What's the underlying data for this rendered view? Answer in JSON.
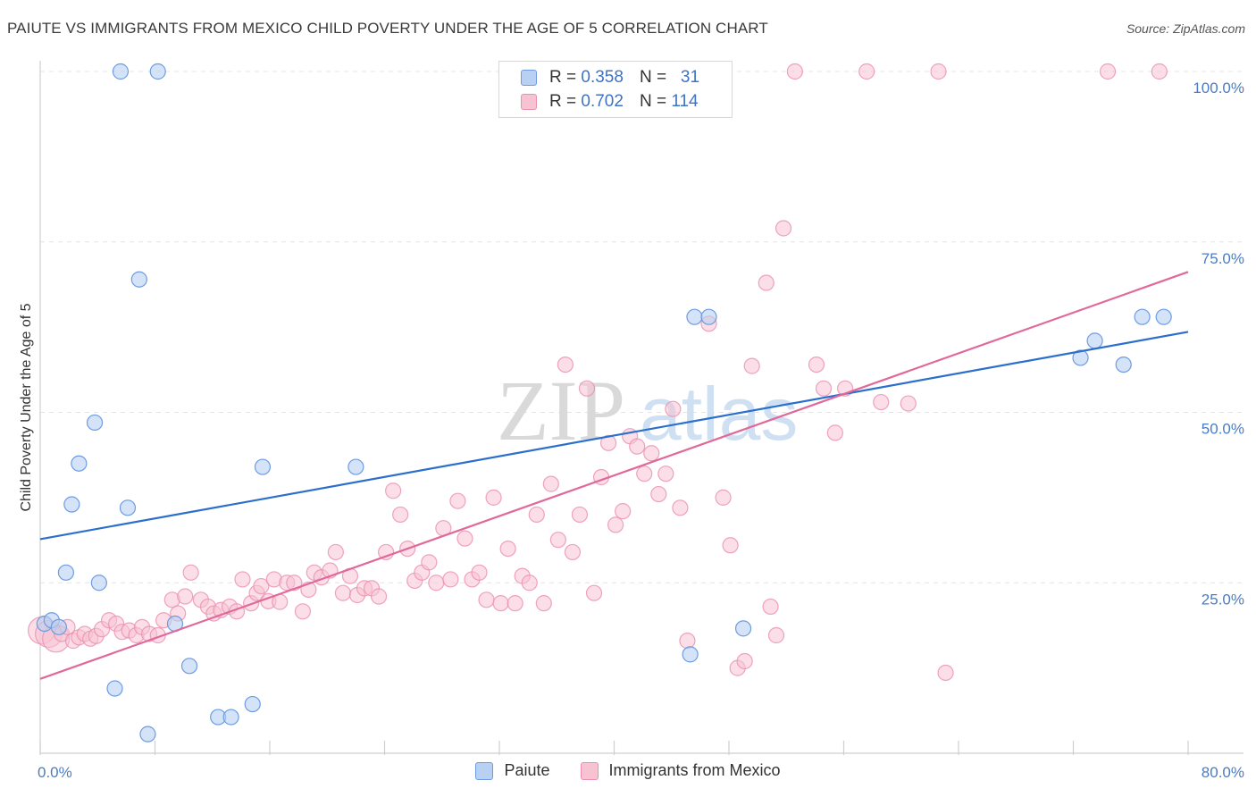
{
  "title": "PAIUTE VS IMMIGRANTS FROM MEXICO CHILD POVERTY UNDER THE AGE OF 5 CORRELATION CHART",
  "source": "Source: ZipAtlas.com",
  "watermark": {
    "zip": "ZIP",
    "atlas": "atlas"
  },
  "colors": {
    "paiute_fill": "#b8d0f2",
    "paiute_stroke": "#6f9ce0",
    "paiute_line": "#2b6fcc",
    "mexico_fill": "#f7c3d3",
    "mexico_stroke": "#ea8fae",
    "mexico_line": "#e0699a",
    "grid": "#e4e4e4",
    "tick_text": "#4a7cc4"
  },
  "legend": {
    "rows": [
      {
        "r_label": "R = ",
        "r_value": "0.358",
        "n_label": "N = ",
        "n_value": "31"
      },
      {
        "r_label": "R = ",
        "r_value": "0.702",
        "n_label": "N = ",
        "n_value": "114"
      }
    ]
  },
  "chart_data": {
    "type": "scatter",
    "title": "PAIUTE VS IMMIGRANTS FROM MEXICO CHILD POVERTY UNDER THE AGE OF 5 CORRELATION CHART",
    "xlabel": "",
    "ylabel": "Child Poverty Under the Age of 5",
    "xlim": [
      0,
      80
    ],
    "ylim": [
      0,
      100
    ],
    "x_tick_labels": [
      "0.0%",
      "80.0%"
    ],
    "y_ticks": [
      25,
      50,
      75,
      100
    ],
    "y_tick_labels": [
      "25.0%",
      "50.0%",
      "75.0%",
      "100.0%"
    ],
    "grid": true,
    "legend_position": "top-center",
    "series": [
      {
        "name": "Paiute",
        "trend": {
          "x": [
            0,
            80
          ],
          "y": [
            31.4,
            61.8
          ]
        },
        "points": [
          [
            0.3,
            19
          ],
          [
            0.8,
            19.5
          ],
          [
            1.3,
            18.5
          ],
          [
            1.8,
            26.5
          ],
          [
            2.2,
            36.5
          ],
          [
            2.7,
            42.5
          ],
          [
            3.8,
            48.5
          ],
          [
            4.1,
            25
          ],
          [
            5.2,
            9.5
          ],
          [
            5.6,
            100
          ],
          [
            6.1,
            36
          ],
          [
            6.9,
            69.5
          ],
          [
            7.5,
            2.8
          ],
          [
            8.2,
            100
          ],
          [
            9.4,
            19
          ],
          [
            10.4,
            12.8
          ],
          [
            12.4,
            5.3
          ],
          [
            13.3,
            5.3
          ],
          [
            14.8,
            7.2
          ],
          [
            15.5,
            42
          ],
          [
            22,
            42
          ],
          [
            34.7,
            100
          ],
          [
            45.3,
            14.5
          ],
          [
            45.6,
            64
          ],
          [
            46.6,
            64
          ],
          [
            49,
            18.3
          ],
          [
            72.5,
            58
          ],
          [
            73.5,
            60.5
          ],
          [
            75.5,
            57
          ],
          [
            76.8,
            64
          ],
          [
            78.3,
            64
          ]
        ]
      },
      {
        "name": "Immigrants from Mexico",
        "trend": {
          "x": [
            0,
            80
          ],
          "y": [
            10.9,
            70.6
          ]
        },
        "points": [
          [
            0.1,
            18
          ],
          [
            0.6,
            17.5
          ],
          [
            1.1,
            16.8
          ],
          [
            1.5,
            17.5
          ],
          [
            1.9,
            18.5
          ],
          [
            2.3,
            16.5
          ],
          [
            2.7,
            17
          ],
          [
            3.1,
            17.5
          ],
          [
            3.5,
            16.8
          ],
          [
            3.9,
            17.2
          ],
          [
            4.3,
            18.2
          ],
          [
            4.8,
            19.5
          ],
          [
            5.3,
            19
          ],
          [
            5.7,
            17.8
          ],
          [
            6.2,
            18
          ],
          [
            6.7,
            17.3
          ],
          [
            7.1,
            18.5
          ],
          [
            7.6,
            17.5
          ],
          [
            8.2,
            17.3
          ],
          [
            8.6,
            19.5
          ],
          [
            9.2,
            22.5
          ],
          [
            9.6,
            20.5
          ],
          [
            10.1,
            23
          ],
          [
            10.5,
            26.5
          ],
          [
            11.2,
            22.5
          ],
          [
            11.7,
            21.5
          ],
          [
            12.1,
            20.5
          ],
          [
            12.6,
            21
          ],
          [
            13.2,
            21.5
          ],
          [
            13.7,
            20.8
          ],
          [
            14.1,
            25.5
          ],
          [
            14.7,
            22
          ],
          [
            15.1,
            23.5
          ],
          [
            15.4,
            24.5
          ],
          [
            15.9,
            22.3
          ],
          [
            16.3,
            25.5
          ],
          [
            16.7,
            22.2
          ],
          [
            17.2,
            25
          ],
          [
            17.7,
            25
          ],
          [
            18.3,
            20.8
          ],
          [
            18.7,
            24
          ],
          [
            19.1,
            26.5
          ],
          [
            19.6,
            25.8
          ],
          [
            20.2,
            26.8
          ],
          [
            20.6,
            29.5
          ],
          [
            21.1,
            23.5
          ],
          [
            21.6,
            26
          ],
          [
            22.1,
            23.2
          ],
          [
            22.6,
            24.2
          ],
          [
            23.1,
            24.2
          ],
          [
            23.6,
            23
          ],
          [
            24.1,
            29.5
          ],
          [
            24.6,
            38.5
          ],
          [
            25.1,
            35
          ],
          [
            25.6,
            30
          ],
          [
            26.1,
            25.3
          ],
          [
            26.6,
            26.5
          ],
          [
            27.1,
            28
          ],
          [
            27.6,
            25
          ],
          [
            28.1,
            33
          ],
          [
            28.6,
            25.5
          ],
          [
            29.1,
            37
          ],
          [
            29.6,
            31.5
          ],
          [
            30.1,
            25.5
          ],
          [
            30.6,
            26.5
          ],
          [
            31.1,
            22.5
          ],
          [
            31.6,
            37.5
          ],
          [
            32.1,
            22
          ],
          [
            32.6,
            30
          ],
          [
            33.1,
            22
          ],
          [
            33.6,
            26
          ],
          [
            34.1,
            25
          ],
          [
            34.6,
            35
          ],
          [
            35.1,
            22
          ],
          [
            35.6,
            39.5
          ],
          [
            36.1,
            31.3
          ],
          [
            36.6,
            57
          ],
          [
            37.1,
            29.5
          ],
          [
            37.6,
            35
          ],
          [
            38.1,
            53.5
          ],
          [
            38.6,
            23.5
          ],
          [
            39.1,
            40.5
          ],
          [
            39.6,
            45.5
          ],
          [
            40.1,
            33.5
          ],
          [
            40.6,
            35.5
          ],
          [
            41.1,
            46.5
          ],
          [
            41.6,
            45
          ],
          [
            42.1,
            41
          ],
          [
            42.6,
            44
          ],
          [
            43.1,
            38
          ],
          [
            43.6,
            41
          ],
          [
            44.1,
            50.5
          ],
          [
            44.6,
            36
          ],
          [
            45.1,
            16.5
          ],
          [
            46.6,
            63
          ],
          [
            47.6,
            37.5
          ],
          [
            48.1,
            30.5
          ],
          [
            48.6,
            12.5
          ],
          [
            49.1,
            13.5
          ],
          [
            49.6,
            56.8
          ],
          [
            50.6,
            69
          ],
          [
            50.9,
            21.5
          ],
          [
            51.3,
            17.3
          ],
          [
            51.8,
            77
          ],
          [
            52.6,
            100
          ],
          [
            54.1,
            57
          ],
          [
            54.6,
            53.5
          ],
          [
            55.4,
            47
          ],
          [
            56.1,
            53.5
          ],
          [
            57.6,
            100
          ],
          [
            58.6,
            51.5
          ],
          [
            60.5,
            51.3
          ],
          [
            62.6,
            100
          ],
          [
            63.1,
            11.8
          ],
          [
            74.4,
            100
          ],
          [
            78,
            100
          ]
        ]
      }
    ]
  },
  "bottom_legend": [
    "Paiute",
    "Immigrants from Mexico"
  ]
}
